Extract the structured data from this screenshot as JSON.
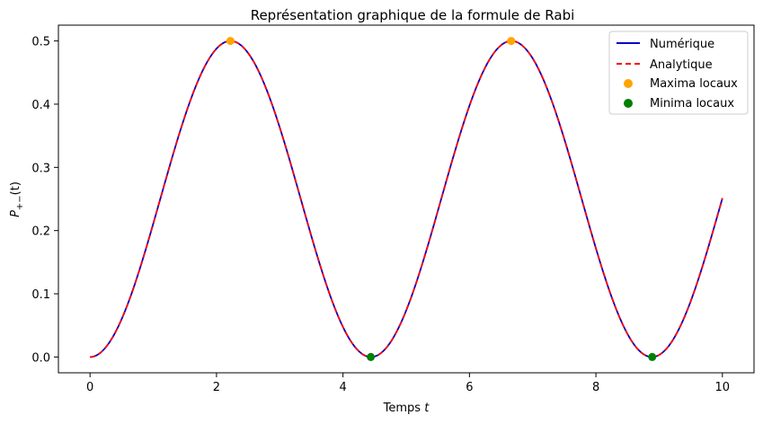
{
  "chart_data": {
    "type": "line",
    "title": "Représentation graphique de la formule de Rabi",
    "xlabel_main": "Temps ",
    "xlabel_var": "t",
    "ylabel_main": "P",
    "ylabel_sub": "+−",
    "ylabel_arg": "(t)",
    "xlim": [
      -0.5,
      10.5
    ],
    "ylim": [
      -0.025,
      0.525
    ],
    "x_ticks": [
      0,
      2,
      4,
      6,
      8,
      10
    ],
    "y_ticks": [
      0.0,
      0.1,
      0.2,
      0.3,
      0.4,
      0.5
    ],
    "x_tick_labels": [
      "0",
      "2",
      "4",
      "6",
      "8",
      "10"
    ],
    "y_tick_labels": [
      "0.0",
      "0.1",
      "0.2",
      "0.3",
      "0.4",
      "0.5"
    ],
    "grid": false,
    "legend_position": "top-right",
    "model": {
      "formula": "amplitude * sin(omega * t / 2)^2",
      "amplitude": 0.5,
      "omega": 1.4142,
      "t_range": [
        0,
        10
      ],
      "samples": 400
    },
    "series": [
      {
        "name": "Numérique",
        "style": "solid",
        "color": "#0000cc"
      },
      {
        "name": "Analytique",
        "style": "dashed",
        "color": "#ff0000"
      }
    ],
    "maxima": {
      "name": "Maxima locaux",
      "color": "#ffa500",
      "points": [
        [
          2.22,
          0.5
        ],
        [
          6.66,
          0.5
        ]
      ]
    },
    "minima": {
      "name": "Minima locaux",
      "color": "#008000",
      "points": [
        [
          4.44,
          0.0
        ],
        [
          8.89,
          0.0
        ]
      ]
    }
  }
}
